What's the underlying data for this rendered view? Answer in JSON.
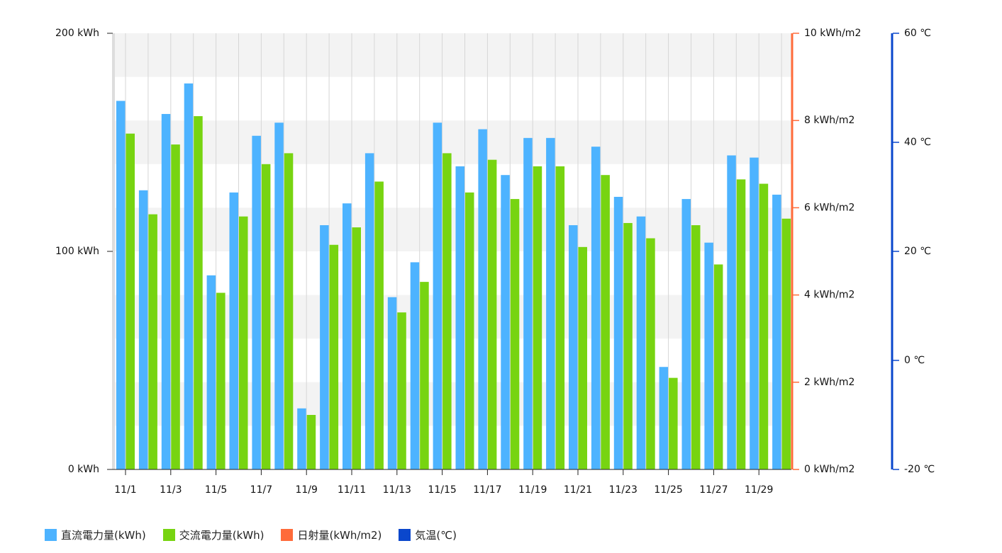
{
  "chart_data": {
    "type": "bar",
    "categories": [
      "11/1",
      "11/2",
      "11/3",
      "11/4",
      "11/5",
      "11/6",
      "11/7",
      "11/8",
      "11/9",
      "11/10",
      "11/11",
      "11/12",
      "11/13",
      "11/14",
      "11/15",
      "11/16",
      "11/17",
      "11/18",
      "11/19",
      "11/20",
      "11/21",
      "11/22",
      "11/23",
      "11/24",
      "11/25",
      "11/26",
      "11/27",
      "11/28",
      "11/29",
      "11/30"
    ],
    "x_tick_labels": [
      "11/1",
      "11/3",
      "11/5",
      "11/7",
      "11/9",
      "11/11",
      "11/13",
      "11/15",
      "11/17",
      "11/19",
      "11/21",
      "11/23",
      "11/25",
      "11/27",
      "11/29"
    ],
    "series": [
      {
        "name": "直流電力量(kWh)",
        "color": "#4db3ff",
        "values": [
          169,
          128,
          163,
          177,
          89,
          127,
          153,
          159,
          28,
          112,
          122,
          145,
          79,
          95,
          159,
          139,
          156,
          135,
          152,
          152,
          112,
          148,
          125,
          116,
          47,
          124,
          104,
          144,
          143,
          126
        ]
      },
      {
        "name": "交流電力量(kWh)",
        "color": "#77d411",
        "values": [
          154,
          117,
          149,
          162,
          81,
          116,
          140,
          145,
          25,
          103,
          111,
          132,
          72,
          86,
          145,
          127,
          142,
          124,
          139,
          139,
          102,
          135,
          113,
          106,
          42,
          112,
          94,
          133,
          131,
          115
        ]
      }
    ],
    "legend": [
      {
        "label": "直流電力量(kWh)",
        "color": "#4db3ff"
      },
      {
        "label": "交流電力量(kWh)",
        "color": "#77d411"
      },
      {
        "label": "日射量(kWh/m2)",
        "color": "#ff6b3a"
      },
      {
        "label": "気温(℃)",
        "color": "#0a47cc"
      }
    ],
    "y_axes": {
      "left": {
        "ticks": [
          "0 kWh",
          "100 kWh",
          "200 kWh"
        ],
        "ylim": [
          0,
          200
        ],
        "color": "#dddddd"
      },
      "right1": {
        "ticks": [
          "0 kWh/m2",
          "2 kWh/m2",
          "4 kWh/m2",
          "6 kWh/m2",
          "8 kWh/m2",
          "10 kWh/m2"
        ],
        "ylim": [
          0,
          10
        ],
        "color": "#ff6b3a"
      },
      "right2": {
        "ticks": [
          "-20 ℃",
          "0 ℃",
          "20 ℃",
          "40 ℃",
          "60 ℃"
        ],
        "ylim": [
          -20,
          60
        ],
        "color": "#0a47cc"
      }
    },
    "grid": true,
    "legend_position": "bottom-left"
  }
}
